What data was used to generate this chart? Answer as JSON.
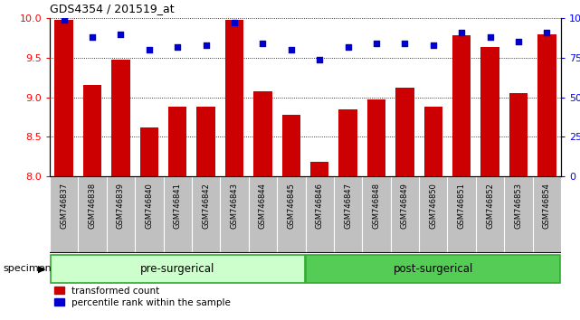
{
  "title": "GDS4354 / 201519_at",
  "categories": [
    "GSM746837",
    "GSM746838",
    "GSM746839",
    "GSM746840",
    "GSM746841",
    "GSM746842",
    "GSM746843",
    "GSM746844",
    "GSM746845",
    "GSM746846",
    "GSM746847",
    "GSM746848",
    "GSM746849",
    "GSM746850",
    "GSM746851",
    "GSM746852",
    "GSM746853",
    "GSM746854"
  ],
  "bar_values": [
    9.98,
    9.15,
    9.47,
    8.62,
    8.88,
    8.88,
    9.98,
    9.07,
    8.78,
    8.18,
    8.85,
    8.97,
    9.12,
    8.88,
    9.78,
    9.63,
    9.05,
    9.79
  ],
  "percentile_values": [
    99,
    88,
    90,
    80,
    82,
    83,
    97,
    84,
    80,
    74,
    82,
    84,
    84,
    83,
    91,
    88,
    85,
    91
  ],
  "ylim_left": [
    8.0,
    10.0
  ],
  "ylim_right": [
    0,
    100
  ],
  "yticks_left": [
    8.0,
    8.5,
    9.0,
    9.5,
    10.0
  ],
  "yticks_right": [
    0,
    25,
    50,
    75,
    100
  ],
  "bar_color": "#CC0000",
  "percentile_color": "#0000CC",
  "pre_n": 9,
  "post_n": 9,
  "group1_color": "#CCFFCC",
  "group2_color": "#55CC55",
  "legend_bar_label": "transformed count",
  "legend_pct_label": "percentile rank within the sample",
  "specimen_label": "specimen",
  "xtick_bg_color": "#C0C0C0",
  "pre_surgical_label": "pre-surgerical",
  "post_surgical_label": "post-surgerical"
}
